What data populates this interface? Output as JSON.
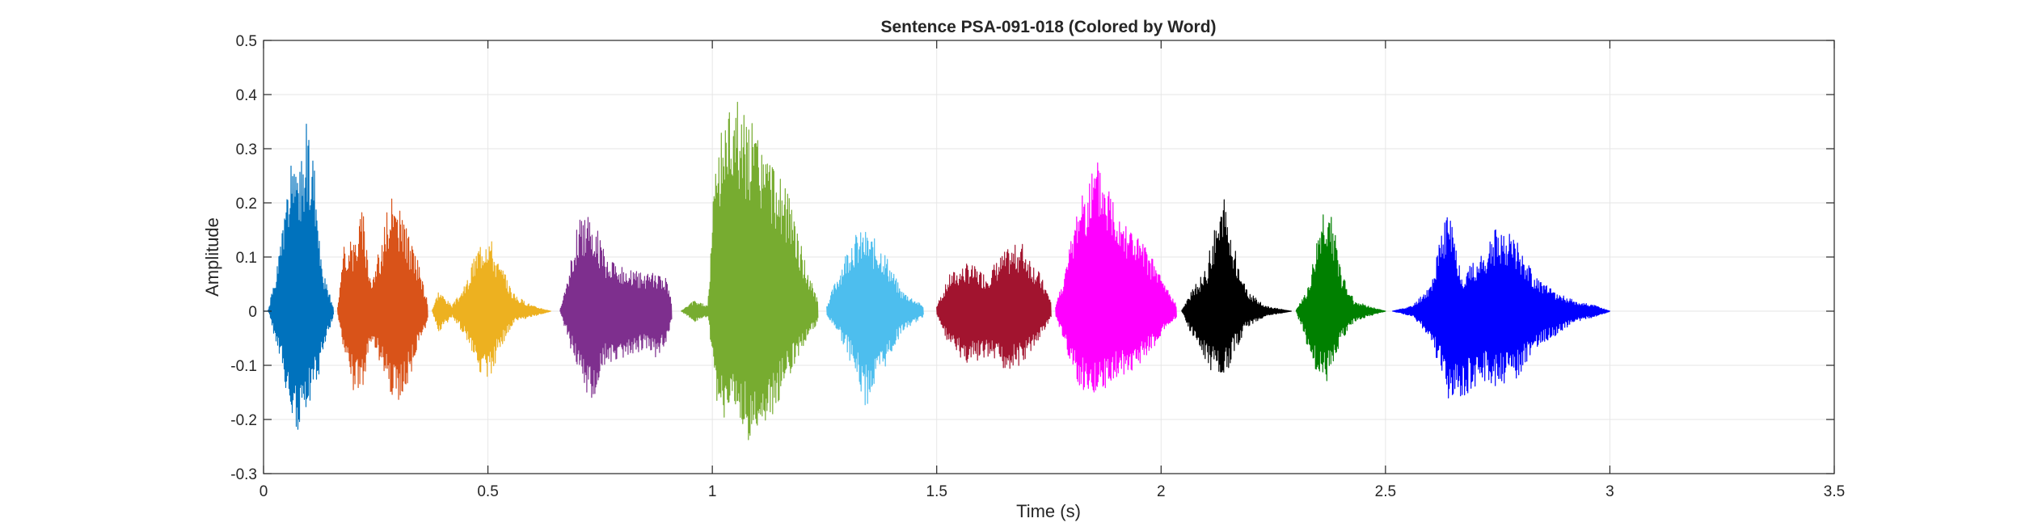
{
  "chart_data": {
    "type": "line",
    "title": "Sentence PSA-091-018 (Colored by Word)",
    "xlabel": "Time (s)",
    "ylabel": "Amplitude",
    "xlim": [
      0,
      3.5
    ],
    "ylim": [
      -0.3,
      0.5
    ],
    "xticks": [
      0,
      0.5,
      1,
      1.5,
      2,
      2.5,
      3,
      3.5
    ],
    "xtick_labels": [
      "0",
      "0.5",
      "1",
      "1.5",
      "2",
      "2.5",
      "3",
      "3.5"
    ],
    "yticks": [
      -0.3,
      -0.2,
      -0.1,
      0,
      0.1,
      0.2,
      0.3,
      0.4,
      0.5
    ],
    "ytick_labels": [
      "-0.3",
      "-0.2",
      "-0.1",
      "0",
      "0.1",
      "0.2",
      "0.3",
      "0.4",
      "0.5"
    ],
    "grid": true,
    "legend": false,
    "series": [
      {
        "color": "#0072BD",
        "t_start": 0.0,
        "t_end": 0.155,
        "peaks": [
          [
            0.0,
            0.0
          ],
          [
            0.01,
            0.0
          ],
          [
            0.03,
            0.08
          ],
          [
            0.06,
            0.27
          ],
          [
            0.08,
            0.25
          ],
          [
            0.095,
            0.37
          ],
          [
            0.11,
            0.3
          ],
          [
            0.13,
            0.08
          ],
          [
            0.155,
            0.01
          ]
        ],
        "troughs": [
          [
            0.0,
            0.0
          ],
          [
            0.01,
            0.0
          ],
          [
            0.03,
            -0.07
          ],
          [
            0.06,
            -0.2
          ],
          [
            0.085,
            -0.24
          ],
          [
            0.1,
            -0.18
          ],
          [
            0.12,
            -0.13
          ],
          [
            0.14,
            -0.05
          ],
          [
            0.155,
            -0.01
          ]
        ]
      },
      {
        "color": "#D95319",
        "t_start": 0.165,
        "t_end": 0.365,
        "peaks": [
          [
            0.165,
            0.01
          ],
          [
            0.18,
            0.13
          ],
          [
            0.2,
            0.13
          ],
          [
            0.22,
            0.2
          ],
          [
            0.24,
            0.06
          ],
          [
            0.26,
            0.12
          ],
          [
            0.28,
            0.21
          ],
          [
            0.3,
            0.2
          ],
          [
            0.32,
            0.15
          ],
          [
            0.345,
            0.09
          ],
          [
            0.365,
            0.02
          ]
        ],
        "troughs": [
          [
            0.165,
            -0.01
          ],
          [
            0.18,
            -0.08
          ],
          [
            0.2,
            -0.16
          ],
          [
            0.22,
            -0.15
          ],
          [
            0.24,
            -0.05
          ],
          [
            0.26,
            -0.1
          ],
          [
            0.28,
            -0.15
          ],
          [
            0.3,
            -0.17
          ],
          [
            0.32,
            -0.14
          ],
          [
            0.345,
            -0.06
          ],
          [
            0.365,
            -0.02
          ]
        ]
      },
      {
        "color": "#EDB120",
        "t_start": 0.375,
        "t_end": 0.64,
        "peaks": [
          [
            0.375,
            0.0
          ],
          [
            0.39,
            0.04
          ],
          [
            0.42,
            0.01
          ],
          [
            0.45,
            0.05
          ],
          [
            0.48,
            0.13
          ],
          [
            0.5,
            0.16
          ],
          [
            0.52,
            0.1
          ],
          [
            0.56,
            0.03
          ],
          [
            0.6,
            0.01
          ],
          [
            0.64,
            0.0
          ]
        ],
        "troughs": [
          [
            0.375,
            0.0
          ],
          [
            0.39,
            -0.04
          ],
          [
            0.42,
            -0.01
          ],
          [
            0.45,
            -0.05
          ],
          [
            0.48,
            -0.11
          ],
          [
            0.5,
            -0.15
          ],
          [
            0.52,
            -0.08
          ],
          [
            0.56,
            -0.02
          ],
          [
            0.6,
            -0.01
          ],
          [
            0.64,
            0.0
          ]
        ]
      },
      {
        "color": "#7E2F8E",
        "t_start": 0.66,
        "t_end": 0.91,
        "peaks": [
          [
            0.66,
            0.0
          ],
          [
            0.68,
            0.07
          ],
          [
            0.7,
            0.17
          ],
          [
            0.73,
            0.19
          ],
          [
            0.76,
            0.11
          ],
          [
            0.8,
            0.08
          ],
          [
            0.85,
            0.07
          ],
          [
            0.88,
            0.07
          ],
          [
            0.9,
            0.06
          ],
          [
            0.91,
            0.01
          ]
        ],
        "troughs": [
          [
            0.66,
            0.0
          ],
          [
            0.68,
            -0.06
          ],
          [
            0.7,
            -0.12
          ],
          [
            0.73,
            -0.17
          ],
          [
            0.76,
            -0.1
          ],
          [
            0.8,
            -0.09
          ],
          [
            0.85,
            -0.07
          ],
          [
            0.88,
            -0.09
          ],
          [
            0.9,
            -0.05
          ],
          [
            0.91,
            -0.01
          ]
        ]
      },
      {
        "color": "#77AC30",
        "t_start": 0.93,
        "t_end": 1.235,
        "peaks": [
          [
            0.93,
            0.0
          ],
          [
            0.96,
            0.02
          ],
          [
            0.99,
            0.01
          ],
          [
            1.01,
            0.33
          ],
          [
            1.05,
            0.41
          ],
          [
            1.09,
            0.35
          ],
          [
            1.13,
            0.28
          ],
          [
            1.17,
            0.22
          ],
          [
            1.21,
            0.08
          ],
          [
            1.235,
            0.02
          ]
        ],
        "troughs": [
          [
            0.93,
            0.0
          ],
          [
            0.96,
            -0.02
          ],
          [
            0.99,
            -0.01
          ],
          [
            1.01,
            -0.21
          ],
          [
            1.05,
            -0.18
          ],
          [
            1.08,
            -0.24
          ],
          [
            1.12,
            -0.22
          ],
          [
            1.17,
            -0.12
          ],
          [
            1.21,
            -0.05
          ],
          [
            1.235,
            -0.02
          ]
        ]
      },
      {
        "color": "#4DBEEE",
        "t_start": 1.255,
        "t_end": 1.47,
        "peaks": [
          [
            1.255,
            0.01
          ],
          [
            1.28,
            0.07
          ],
          [
            1.31,
            0.14
          ],
          [
            1.34,
            0.15
          ],
          [
            1.38,
            0.12
          ],
          [
            1.42,
            0.04
          ],
          [
            1.47,
            0.01
          ]
        ],
        "troughs": [
          [
            1.255,
            -0.01
          ],
          [
            1.28,
            -0.04
          ],
          [
            1.31,
            -0.1
          ],
          [
            1.34,
            -0.18
          ],
          [
            1.37,
            -0.13
          ],
          [
            1.42,
            -0.04
          ],
          [
            1.47,
            -0.01
          ]
        ]
      },
      {
        "color": "#A2142F",
        "t_start": 1.5,
        "t_end": 1.755,
        "peaks": [
          [
            1.5,
            0.01
          ],
          [
            1.53,
            0.07
          ],
          [
            1.57,
            0.09
          ],
          [
            1.61,
            0.07
          ],
          [
            1.65,
            0.11
          ],
          [
            1.69,
            0.13
          ],
          [
            1.73,
            0.07
          ],
          [
            1.755,
            0.02
          ]
        ],
        "troughs": [
          [
            1.5,
            -0.01
          ],
          [
            1.53,
            -0.07
          ],
          [
            1.57,
            -0.1
          ],
          [
            1.61,
            -0.09
          ],
          [
            1.65,
            -0.11
          ],
          [
            1.69,
            -0.1
          ],
          [
            1.73,
            -0.05
          ],
          [
            1.755,
            -0.01
          ]
        ]
      },
      {
        "color": "#FF00FF",
        "t_start": 1.765,
        "t_end": 2.035,
        "peaks": [
          [
            1.765,
            0.01
          ],
          [
            1.79,
            0.09
          ],
          [
            1.82,
            0.23
          ],
          [
            1.86,
            0.28
          ],
          [
            1.9,
            0.21
          ],
          [
            1.94,
            0.15
          ],
          [
            1.98,
            0.1
          ],
          [
            2.01,
            0.05
          ],
          [
            2.035,
            0.01
          ]
        ],
        "troughs": [
          [
            1.765,
            -0.01
          ],
          [
            1.79,
            -0.08
          ],
          [
            1.82,
            -0.15
          ],
          [
            1.86,
            -0.15
          ],
          [
            1.9,
            -0.13
          ],
          [
            1.94,
            -0.11
          ],
          [
            1.98,
            -0.07
          ],
          [
            2.01,
            -0.03
          ],
          [
            2.035,
            -0.01
          ]
        ]
      },
      {
        "color": "#000000",
        "t_start": 2.045,
        "t_end": 2.29,
        "peaks": [
          [
            2.045,
            0.0
          ],
          [
            2.07,
            0.04
          ],
          [
            2.1,
            0.08
          ],
          [
            2.12,
            0.16
          ],
          [
            2.14,
            0.21
          ],
          [
            2.16,
            0.13
          ],
          [
            2.19,
            0.04
          ],
          [
            2.23,
            0.01
          ],
          [
            2.29,
            0.0
          ]
        ],
        "troughs": [
          [
            2.045,
            0.0
          ],
          [
            2.07,
            -0.05
          ],
          [
            2.1,
            -0.1
          ],
          [
            2.12,
            -0.12
          ],
          [
            2.14,
            -0.13
          ],
          [
            2.16,
            -0.08
          ],
          [
            2.19,
            -0.03
          ],
          [
            2.23,
            -0.01
          ],
          [
            2.29,
            0.0
          ]
        ]
      },
      {
        "color": "#008000",
        "t_start": 2.3,
        "t_end": 2.5,
        "peaks": [
          [
            2.3,
            0.0
          ],
          [
            2.33,
            0.05
          ],
          [
            2.36,
            0.19
          ],
          [
            2.38,
            0.19
          ],
          [
            2.4,
            0.08
          ],
          [
            2.43,
            0.02
          ],
          [
            2.46,
            0.01
          ],
          [
            2.5,
            0.0
          ]
        ],
        "troughs": [
          [
            2.3,
            0.0
          ],
          [
            2.33,
            -0.08
          ],
          [
            2.36,
            -0.14
          ],
          [
            2.38,
            -0.12
          ],
          [
            2.4,
            -0.06
          ],
          [
            2.43,
            -0.02
          ],
          [
            2.46,
            -0.01
          ],
          [
            2.5,
            0.0
          ]
        ]
      },
      {
        "color": "#0000FF",
        "t_start": 2.515,
        "t_end": 3.0,
        "peaks": [
          [
            2.515,
            0.0
          ],
          [
            2.56,
            0.01
          ],
          [
            2.6,
            0.05
          ],
          [
            2.64,
            0.2
          ],
          [
            2.67,
            0.07
          ],
          [
            2.72,
            0.11
          ],
          [
            2.75,
            0.16
          ],
          [
            2.79,
            0.14
          ],
          [
            2.83,
            0.07
          ],
          [
            2.87,
            0.04
          ],
          [
            2.92,
            0.02
          ],
          [
            2.97,
            0.01
          ],
          [
            3.0,
            0.0
          ]
        ],
        "troughs": [
          [
            2.515,
            0.0
          ],
          [
            2.56,
            -0.01
          ],
          [
            2.6,
            -0.05
          ],
          [
            2.64,
            -0.17
          ],
          [
            2.67,
            -0.16
          ],
          [
            2.72,
            -0.13
          ],
          [
            2.75,
            -0.14
          ],
          [
            2.79,
            -0.13
          ],
          [
            2.83,
            -0.07
          ],
          [
            2.87,
            -0.05
          ],
          [
            2.92,
            -0.02
          ],
          [
            2.97,
            -0.01
          ],
          [
            3.0,
            0.0
          ]
        ]
      }
    ]
  }
}
